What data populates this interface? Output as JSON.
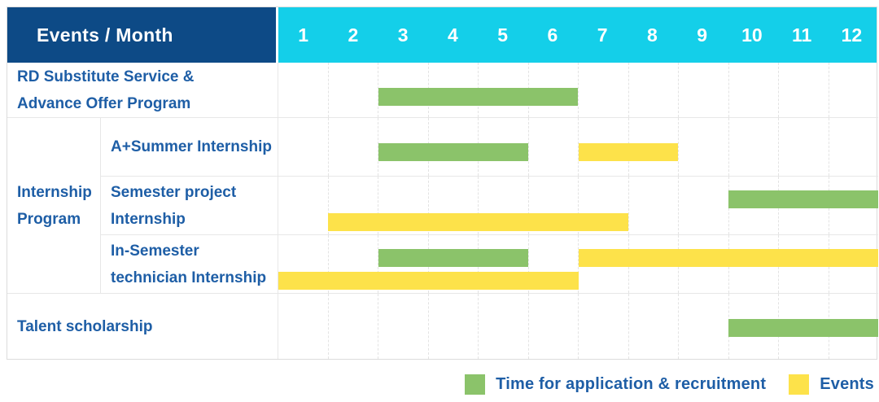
{
  "header": {
    "title": "Events / Month",
    "months": [
      "1",
      "2",
      "3",
      "4",
      "5",
      "6",
      "7",
      "8",
      "9",
      "10",
      "11",
      "12"
    ]
  },
  "colors": {
    "header_blue": "#0d4a86",
    "months_cyan": "#14cfe9",
    "text_blue": "#1e5ea6",
    "green": "#8bc36a",
    "yellow": "#fde24a"
  },
  "chart_data": {
    "type": "gantt",
    "title": "Events / Month",
    "x_axis": {
      "label": "Month",
      "categories": [
        "1",
        "2",
        "3",
        "4",
        "5",
        "6",
        "7",
        "8",
        "9",
        "10",
        "11",
        "12"
      ],
      "range": [
        1,
        12
      ]
    },
    "legend_position": "bottom-right",
    "grid": "dashed-vertical-month-lines",
    "legend": [
      {
        "name": "Time for application & recruitment",
        "color_key": "green"
      },
      {
        "name": "Events",
        "color_key": "yellow"
      }
    ],
    "rows": [
      {
        "group": "",
        "label": "RD Substitute Service & Advance Offer Program",
        "bars": [
          {
            "series": "Time for application & recruitment",
            "color": "green",
            "start_month": 3,
            "end_month": 6,
            "line": 0
          }
        ]
      },
      {
        "group": "Internship Program",
        "label": "A+Summer Internship",
        "bars": [
          {
            "series": "Time for application & recruitment",
            "color": "green",
            "start_month": 3,
            "end_month": 5,
            "line": 0
          },
          {
            "series": "Events",
            "color": "yellow",
            "start_month": 7,
            "end_month": 8,
            "line": 0
          }
        ]
      },
      {
        "group": "Internship Program",
        "label": "Semester project Internship",
        "bars": [
          {
            "series": "Time for application & recruitment",
            "color": "green",
            "start_month": 10,
            "end_month": 12,
            "line": 0
          },
          {
            "series": "Events",
            "color": "yellow",
            "start_month": 2,
            "end_month": 7,
            "line": 1
          }
        ]
      },
      {
        "group": "Internship Program",
        "label": "In-Semester technician Internship",
        "bars": [
          {
            "series": "Time for application & recruitment",
            "color": "green",
            "start_month": 3,
            "end_month": 5,
            "line": 0
          },
          {
            "series": "Events",
            "color": "yellow",
            "start_month": 7,
            "end_month": 12,
            "line": 0
          },
          {
            "series": "Events",
            "color": "yellow",
            "start_month": 1,
            "end_month": 6,
            "line": 1
          }
        ]
      },
      {
        "group": "",
        "label": "Talent scholarship",
        "bars": [
          {
            "series": "Time for application & recruitment",
            "color": "green",
            "start_month": 10,
            "end_month": 12,
            "line": 0
          }
        ]
      }
    ]
  }
}
